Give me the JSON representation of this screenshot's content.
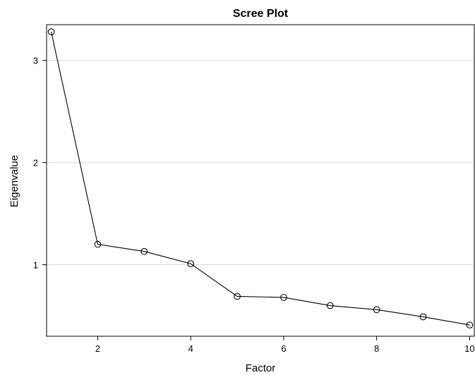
{
  "chart_data": {
    "type": "line",
    "title": "Scree Plot",
    "xlabel": "Factor",
    "ylabel": "Eigenvalue",
    "x": [
      1,
      2,
      3,
      4,
      5,
      6,
      7,
      8,
      9,
      10
    ],
    "series": [
      {
        "values": [
          3.28,
          1.2,
          1.13,
          1.01,
          0.69,
          0.68,
          0.6,
          0.56,
          0.49,
          0.41
        ]
      }
    ],
    "xlim": [
      0.9,
      10.1
    ],
    "ylim": [
      0.3,
      3.35
    ],
    "xticks": [
      2,
      4,
      6,
      8,
      10
    ],
    "yticks": [
      1,
      2,
      3
    ],
    "grid": {
      "horizontal": true,
      "vertical": false
    },
    "marker": "open-circle"
  }
}
